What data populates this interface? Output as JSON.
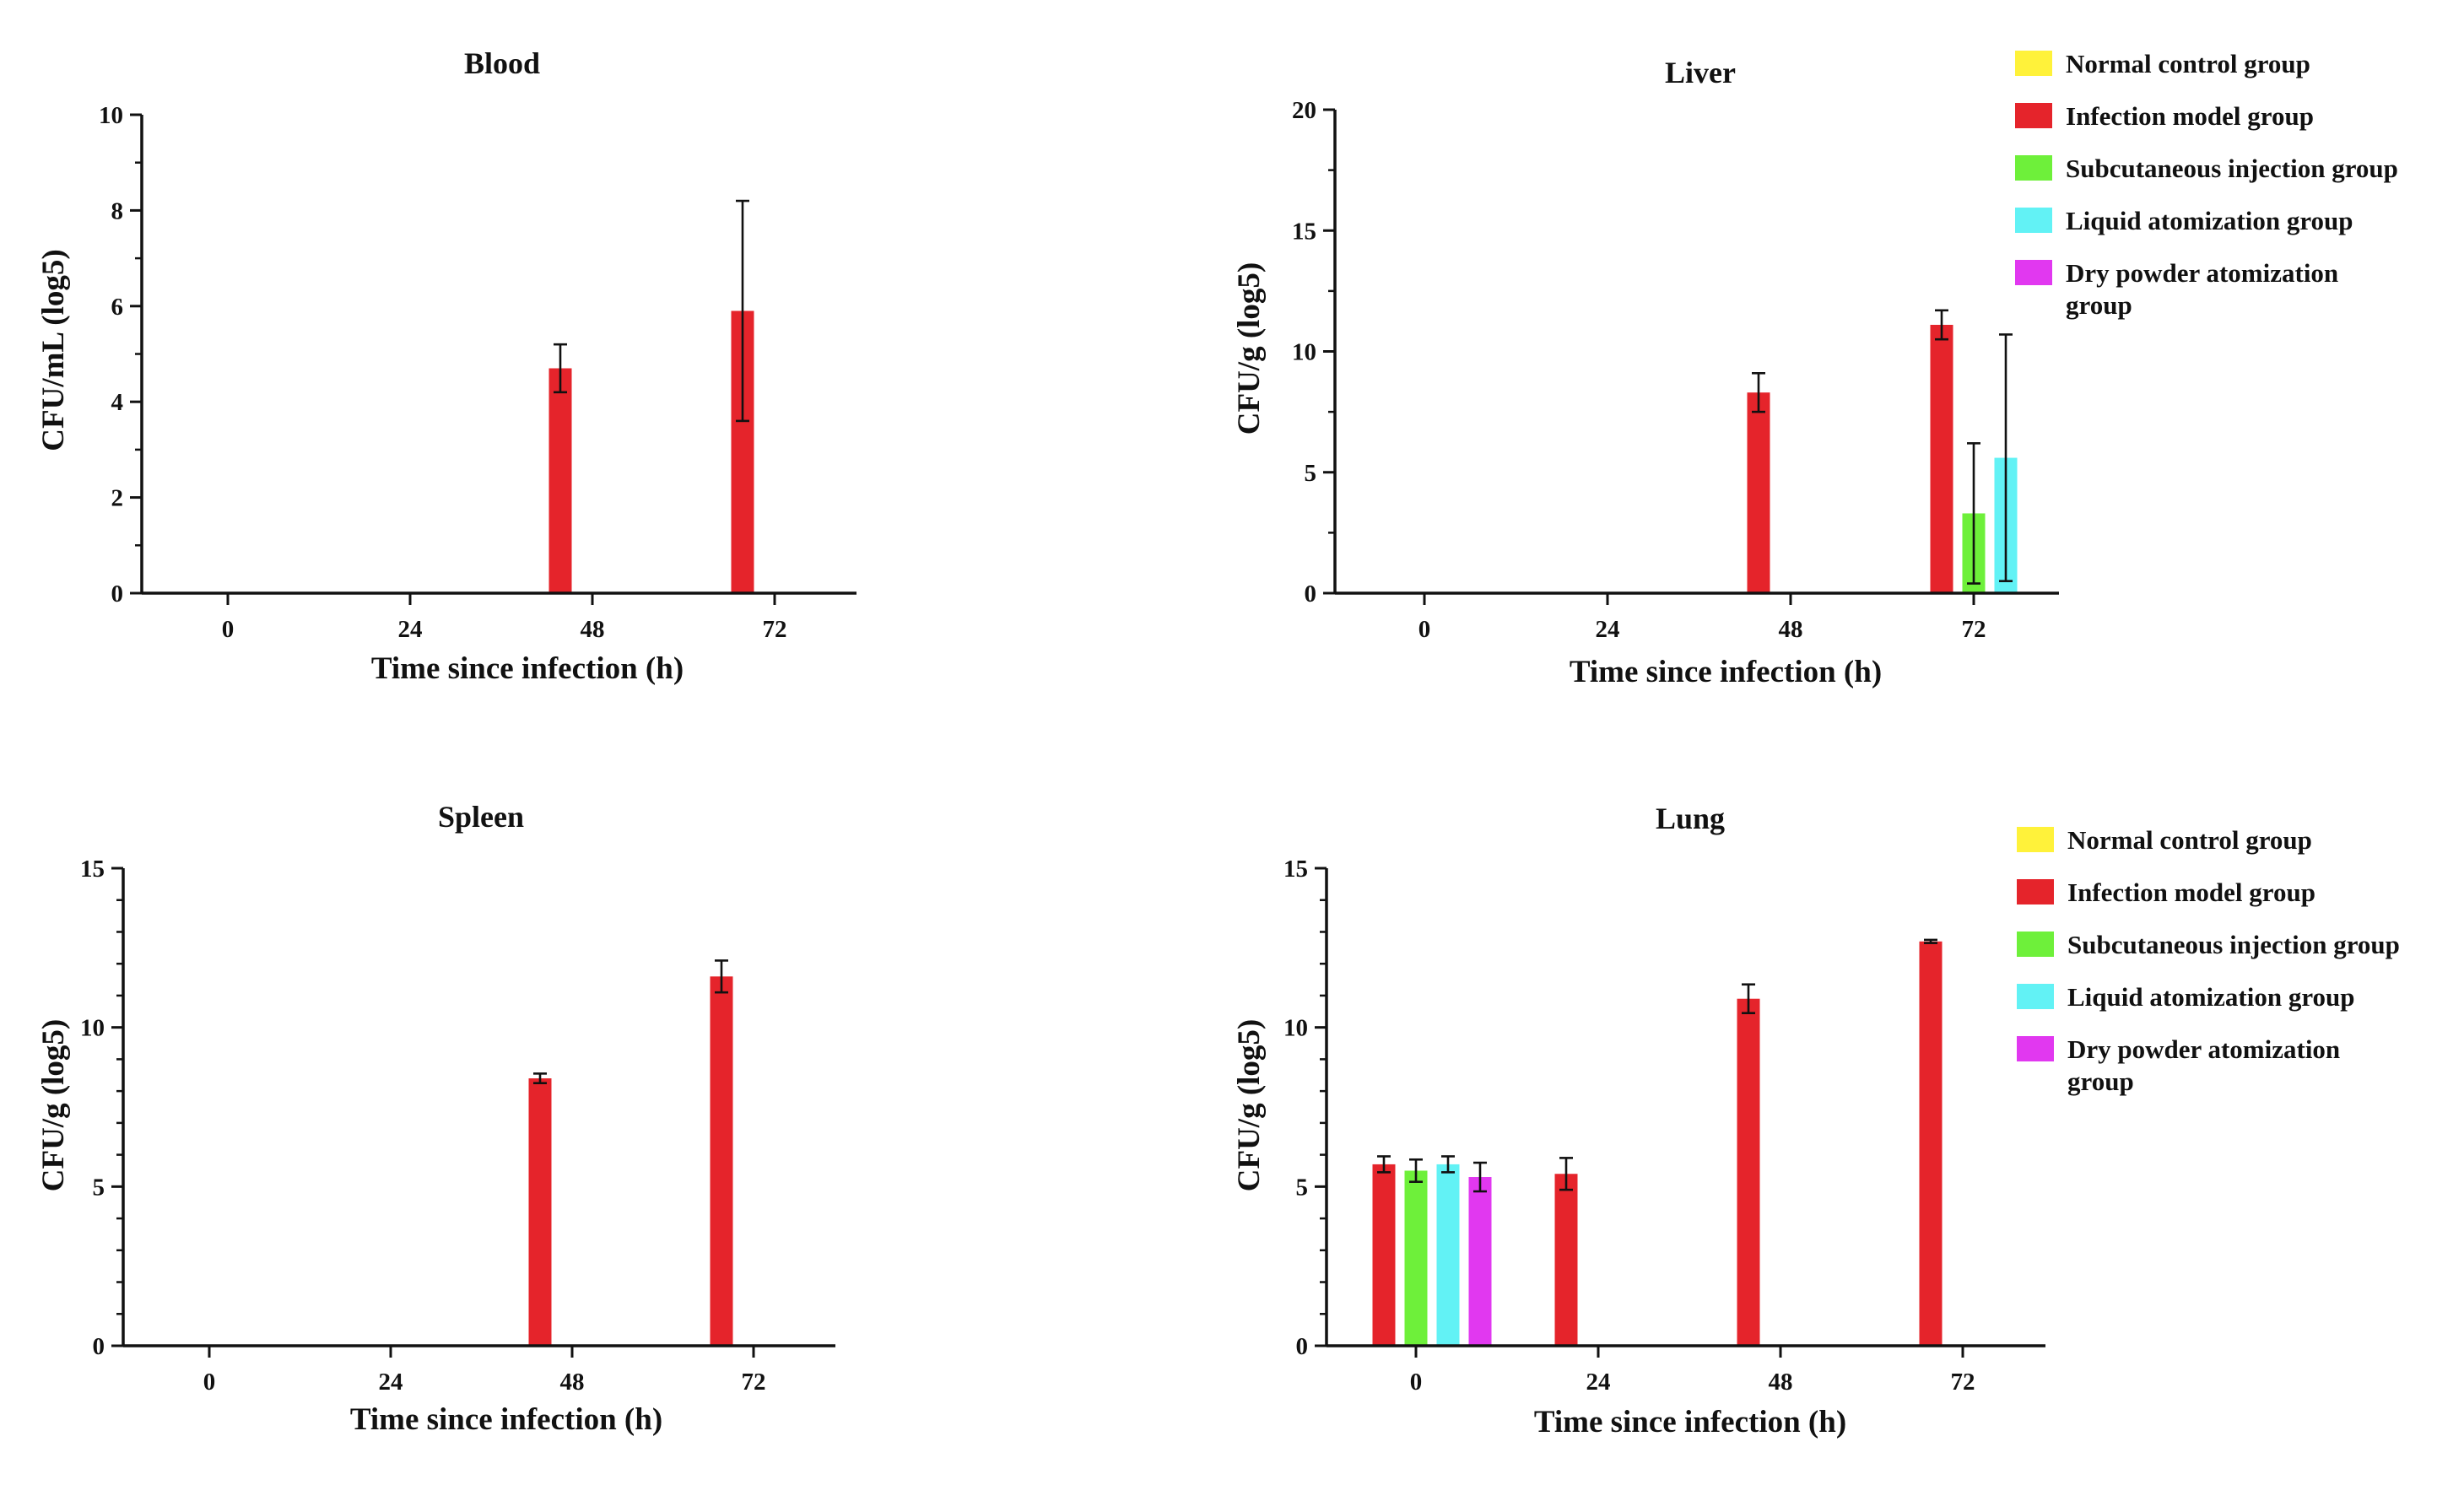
{
  "colors": {
    "normal": "#FFF23A",
    "infection": "#E5242B",
    "subcutaneous": "#6EF03A",
    "liquid": "#62F2F5",
    "drypowder": "#E138F0",
    "axis": "#111111"
  },
  "groups": [
    {
      "key": "normal",
      "name": "Normal control group"
    },
    {
      "key": "infection",
      "name": "Infection model group"
    },
    {
      "key": "subcutaneous",
      "name": "Subcutaneous injection group"
    },
    {
      "key": "liquid",
      "name": "Liquid atomization group"
    },
    {
      "key": "drypowder",
      "name": "Dry powder atomization group",
      "lines": [
        "Dry powder atomization",
        "group"
      ]
    }
  ],
  "chart_data": [
    {
      "id": "blood",
      "type": "bar",
      "title": "Blood",
      "xlabel": "Time since infection (h)",
      "ylabel": "CFU/mL (log5)",
      "categories": [
        "0",
        "24",
        "48",
        "72"
      ],
      "ylim": [
        0,
        10
      ],
      "yticks": [
        0,
        2,
        4,
        6,
        8,
        10
      ],
      "minor_per_major": 2,
      "legend": false,
      "series": [
        {
          "key": "normal",
          "values": [
            0,
            0,
            0,
            0
          ],
          "err": [
            0,
            0,
            0,
            0
          ]
        },
        {
          "key": "infection",
          "values": [
            0,
            0,
            4.7,
            5.9
          ],
          "err": [
            0,
            0,
            0.5,
            2.3
          ]
        },
        {
          "key": "subcutaneous",
          "values": [
            0,
            0,
            0,
            0
          ],
          "err": [
            0,
            0,
            0,
            0
          ]
        },
        {
          "key": "liquid",
          "values": [
            0,
            0,
            0,
            0
          ],
          "err": [
            0,
            0,
            0,
            0
          ]
        },
        {
          "key": "drypowder",
          "values": [
            0,
            0,
            0,
            0
          ],
          "err": [
            0,
            0,
            0,
            0
          ]
        }
      ]
    },
    {
      "id": "liver",
      "type": "bar",
      "title": "Liver",
      "xlabel": "Time since infection (h)",
      "ylabel": "CFU/g (log5)",
      "categories": [
        "0",
        "24",
        "48",
        "72"
      ],
      "ylim": [
        0,
        20
      ],
      "yticks": [
        0,
        5,
        10,
        15,
        20
      ],
      "minor_per_major": 2,
      "legend": true,
      "series": [
        {
          "key": "normal",
          "values": [
            0,
            0,
            0,
            0
          ],
          "err": [
            0,
            0,
            0,
            0
          ]
        },
        {
          "key": "infection",
          "values": [
            0,
            0,
            8.3,
            11.1
          ],
          "err": [
            0,
            0,
            0.8,
            0.6
          ]
        },
        {
          "key": "subcutaneous",
          "values": [
            0,
            0,
            0,
            3.3
          ],
          "err": [
            0,
            0,
            0,
            2.9
          ]
        },
        {
          "key": "liquid",
          "values": [
            0,
            0,
            0,
            5.6
          ],
          "err": [
            0,
            0,
            0,
            5.1
          ]
        },
        {
          "key": "drypowder",
          "values": [
            0,
            0,
            0,
            0
          ],
          "err": [
            0,
            0,
            0,
            0
          ]
        }
      ]
    },
    {
      "id": "spleen",
      "type": "bar",
      "title": "Spleen",
      "xlabel": "Time since infection (h)",
      "ylabel": "CFU/g (log5)",
      "categories": [
        "0",
        "24",
        "48",
        "72"
      ],
      "ylim": [
        0,
        15
      ],
      "yticks": [
        0,
        5,
        10,
        15
      ],
      "minor_per_major": 5,
      "legend": false,
      "series": [
        {
          "key": "normal",
          "values": [
            0,
            0,
            0,
            0
          ],
          "err": [
            0,
            0,
            0,
            0
          ]
        },
        {
          "key": "infection",
          "values": [
            0,
            0,
            8.4,
            11.6
          ],
          "err": [
            0,
            0,
            0.15,
            0.5
          ]
        },
        {
          "key": "subcutaneous",
          "values": [
            0,
            0,
            0,
            0
          ],
          "err": [
            0,
            0,
            0,
            0
          ]
        },
        {
          "key": "liquid",
          "values": [
            0,
            0,
            0,
            0
          ],
          "err": [
            0,
            0,
            0,
            0
          ]
        },
        {
          "key": "drypowder",
          "values": [
            0,
            0,
            0,
            0
          ],
          "err": [
            0,
            0,
            0,
            0
          ]
        }
      ]
    },
    {
      "id": "lung",
      "type": "bar",
      "title": "Lung",
      "xlabel": "Time since infection (h)",
      "ylabel": "CFU/g (log5)",
      "categories": [
        "0",
        "24",
        "48",
        "72"
      ],
      "ylim": [
        0,
        15
      ],
      "yticks": [
        0,
        5,
        10,
        15
      ],
      "minor_per_major": 5,
      "legend": true,
      "series": [
        {
          "key": "normal",
          "values": [
            0,
            0,
            0,
            0
          ],
          "err": [
            0,
            0,
            0,
            0
          ]
        },
        {
          "key": "infection",
          "values": [
            5.7,
            5.4,
            10.9,
            12.7
          ],
          "err": [
            0.25,
            0.5,
            0.45,
            0.05
          ]
        },
        {
          "key": "subcutaneous",
          "values": [
            5.5,
            0,
            0,
            0
          ],
          "err": [
            0.35,
            0,
            0,
            0
          ]
        },
        {
          "key": "liquid",
          "values": [
            5.7,
            0,
            0,
            0
          ],
          "err": [
            0.25,
            0,
            0,
            0
          ]
        },
        {
          "key": "drypowder",
          "values": [
            5.3,
            0,
            0,
            0
          ],
          "err": [
            0.45,
            0,
            0,
            0
          ]
        }
      ]
    }
  ]
}
